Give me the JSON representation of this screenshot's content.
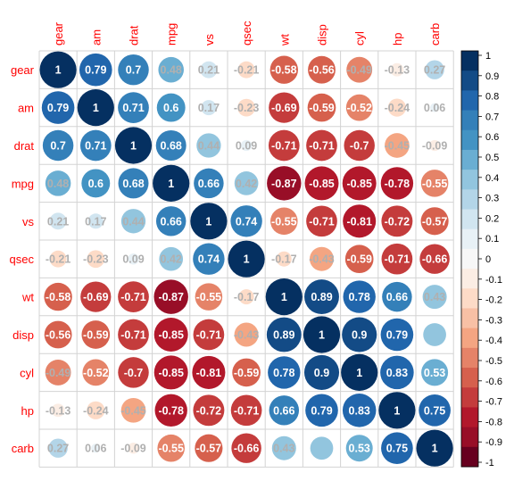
{
  "chart_data": {
    "type": "heatmap",
    "subtype": "correlation-circle-matrix",
    "variables": [
      "gear",
      "am",
      "drat",
      "mpg",
      "vs",
      "qsec",
      "wt",
      "disp",
      "cyl",
      "hp",
      "carb"
    ],
    "values": [
      [
        1,
        0.79,
        0.7,
        0.48,
        0.21,
        -0.21,
        -0.58,
        -0.56,
        -0.49,
        -0.13,
        0.27
      ],
      [
        0.79,
        1,
        0.71,
        0.6,
        0.17,
        -0.23,
        -0.69,
        -0.59,
        -0.52,
        -0.24,
        0.06
      ],
      [
        0.7,
        0.71,
        1,
        0.68,
        0.44,
        0.09,
        -0.71,
        -0.71,
        -0.7,
        -0.45,
        -0.09
      ],
      [
        0.48,
        0.6,
        0.68,
        1,
        0.66,
        0.42,
        -0.87,
        -0.85,
        -0.85,
        -0.78,
        -0.55
      ],
      [
        0.21,
        0.17,
        0.44,
        0.66,
        1,
        0.74,
        -0.55,
        -0.71,
        -0.81,
        -0.72,
        -0.57
      ],
      [
        -0.21,
        -0.23,
        0.09,
        0.42,
        0.74,
        1,
        -0.17,
        -0.43,
        -0.59,
        -0.71,
        -0.66
      ],
      [
        -0.58,
        -0.69,
        -0.71,
        -0.87,
        -0.55,
        -0.17,
        1,
        0.89,
        0.78,
        0.66,
        0.43
      ],
      [
        -0.56,
        -0.59,
        -0.71,
        -0.85,
        -0.71,
        -0.43,
        0.89,
        1,
        0.9,
        0.79,
        0.39
      ],
      [
        -0.49,
        -0.52,
        -0.7,
        -0.85,
        -0.81,
        -0.59,
        0.78,
        0.9,
        1,
        0.83,
        0.53
      ],
      [
        -0.13,
        -0.24,
        -0.45,
        -0.78,
        -0.72,
        -0.71,
        0.66,
        0.79,
        0.83,
        1,
        0.75
      ],
      [
        0.27,
        0.06,
        -0.09,
        -0.55,
        -0.57,
        -0.66,
        0.43,
        0.39,
        0.53,
        0.75,
        1
      ]
    ],
    "cell_labels": [
      [
        "1",
        "0.79",
        "0.7",
        "0.48",
        "0.21",
        "-0.21",
        "-0.58",
        "-0.56",
        "-0.49",
        "-0.13",
        "0.27"
      ],
      [
        "0.79",
        "1",
        "0.71",
        "0.6",
        "0.17",
        "-0.23",
        "-0.69",
        "-0.59",
        "-0.52",
        "-0.24",
        "0.06"
      ],
      [
        "0.7",
        "0.71",
        "1",
        "0.68",
        "0.44",
        "0.09",
        "-0.71",
        "-0.71",
        "-0.7",
        "-0.45",
        "-0.09"
      ],
      [
        "0.48",
        "0.6",
        "0.68",
        "1",
        "0.66",
        "0.42",
        "-0.87",
        "-0.85",
        "-0.85",
        "-0.78",
        "-0.55"
      ],
      [
        "0.21",
        "0.17",
        "0.44",
        "0.66",
        "1",
        "0.74",
        "-0.55",
        "-0.71",
        "-0.81",
        "-0.72",
        "-0.57"
      ],
      [
        "-0.21",
        "-0.23",
        "0.09",
        "0.42",
        "0.74",
        "1",
        "-0.17",
        "-0.43",
        "-0.59",
        "-0.71",
        "-0.66"
      ],
      [
        "-0.58",
        "-0.69",
        "-0.71",
        "-0.87",
        "-0.55",
        "-0.17",
        "1",
        "0.89",
        "0.78",
        "0.66",
        "0.43"
      ],
      [
        "-0.56",
        "-0.59",
        "-0.71",
        "-0.85",
        "-0.71",
        "-0.43",
        "0.89",
        "1",
        "0.9",
        "0.79",
        ""
      ],
      [
        "-0.49",
        "-0.52",
        "-0.7",
        "-0.85",
        "-0.81",
        "-0.59",
        "0.78",
        "0.9",
        "1",
        "0.83",
        "0.53"
      ],
      [
        "-0.13",
        "-0.24",
        "-0.45",
        "-0.78",
        "-0.72",
        "-0.71",
        "0.66",
        "0.79",
        "0.83",
        "1",
        "0.75"
      ],
      [
        "0.27",
        "0.06",
        "-0.09",
        "-0.55",
        "-0.57",
        "-0.66",
        "0.43",
        "",
        "0.53",
        "0.75",
        "1"
      ]
    ],
    "color_scale": {
      "range": [
        -1,
        1
      ],
      "step": 0.1,
      "palette": [
        "#67001F",
        "#980E27",
        "#B2182B",
        "#C43C3C",
        "#D6604D",
        "#E58368",
        "#F4A582",
        "#F8C0A5",
        "#FDDBC7",
        "#FBEDE4",
        "#F7F7F7",
        "#E8F1F6",
        "#D1E5F0",
        "#B3D5E8",
        "#92C5DE",
        "#6AAED2",
        "#4393C3",
        "#3480B9",
        "#2166AC",
        "#134B86",
        "#053061"
      ]
    },
    "legend": {
      "position": "right",
      "ticks": [
        "1",
        "0.9",
        "0.8",
        "0.7",
        "0.6",
        "0.5",
        "0.4",
        "0.3",
        "0.2",
        "0.1",
        "0",
        "-0.1",
        "-0.2",
        "-0.3",
        "-0.4",
        "-0.5",
        "-0.6",
        "-0.7",
        "-0.8",
        "-0.9",
        "-1"
      ]
    },
    "grid": true,
    "label_color": "#FF0000"
  }
}
